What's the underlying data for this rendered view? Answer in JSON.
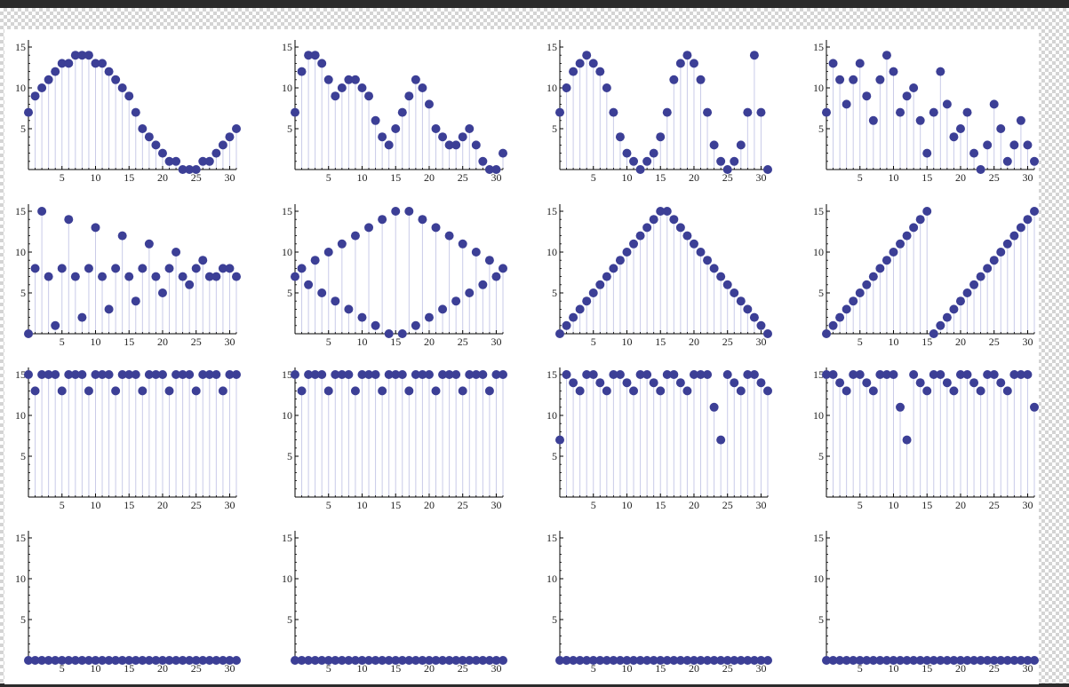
{
  "chart_data": [
    {
      "type": "stem",
      "row": 0,
      "col": 0,
      "xlim": [
        0,
        31
      ],
      "ylim": [
        0,
        15
      ],
      "xticks": [
        5,
        10,
        15,
        20,
        25,
        30
      ],
      "yticks": [
        5,
        10,
        15
      ],
      "values": [
        7,
        9,
        10,
        11,
        12,
        13,
        13,
        14,
        14,
        14,
        13,
        13,
        12,
        11,
        10,
        9,
        7,
        5,
        4,
        3,
        2,
        1,
        1,
        0,
        0,
        0,
        1,
        1,
        2,
        3,
        4,
        5
      ]
    },
    {
      "type": "stem",
      "row": 0,
      "col": 1,
      "xlim": [
        0,
        31
      ],
      "ylim": [
        0,
        15
      ],
      "xticks": [
        5,
        10,
        15,
        20,
        25,
        30
      ],
      "yticks": [
        5,
        10,
        15
      ],
      "values": [
        7,
        12,
        14,
        14,
        13,
        11,
        9,
        10,
        11,
        11,
        10,
        9,
        6,
        4,
        3,
        5,
        7,
        9,
        11,
        10,
        8,
        5,
        4,
        3,
        3,
        4,
        5,
        3,
        1,
        0,
        0,
        2
      ]
    },
    {
      "type": "stem",
      "row": 0,
      "col": 2,
      "xlim": [
        0,
        31
      ],
      "ylim": [
        0,
        15
      ],
      "xticks": [
        5,
        10,
        15,
        20,
        25,
        30
      ],
      "yticks": [
        5,
        10,
        15
      ],
      "values": [
        7,
        10,
        12,
        13,
        14,
        13,
        12,
        10,
        7,
        4,
        2,
        1,
        0,
        1,
        2,
        4,
        7,
        11,
        13,
        14,
        13,
        11,
        7,
        3,
        1,
        0,
        1,
        3,
        7,
        14,
        7,
        0
      ]
    },
    {
      "type": "stem",
      "row": 0,
      "col": 3,
      "xlim": [
        0,
        31
      ],
      "ylim": [
        0,
        15
      ],
      "xticks": [
        5,
        10,
        15,
        20,
        25,
        30
      ],
      "yticks": [
        5,
        10,
        15
      ],
      "values": [
        7,
        13,
        11,
        8,
        11,
        13,
        9,
        6,
        11,
        14,
        12,
        7,
        9,
        10,
        6,
        2,
        7,
        12,
        8,
        4,
        5,
        7,
        2,
        0,
        3,
        8,
        5,
        1,
        3,
        6,
        3,
        1
      ]
    },
    {
      "type": "stem",
      "row": 1,
      "col": 0,
      "xlim": [
        0,
        31
      ],
      "ylim": [
        0,
        15
      ],
      "xticks": [
        5,
        10,
        15,
        20,
        25,
        30
      ],
      "yticks": [
        5,
        10,
        15
      ],
      "values": [
        0,
        8,
        15,
        7,
        1,
        8,
        14,
        7,
        2,
        8,
        13,
        7,
        3,
        8,
        12,
        7,
        4,
        8,
        11,
        7,
        5,
        8,
        10,
        7,
        6,
        8,
        9,
        7,
        7,
        8,
        8,
        7
      ]
    },
    {
      "type": "stem",
      "row": 1,
      "col": 1,
      "xlim": [
        0,
        31
      ],
      "ylim": [
        0,
        15
      ],
      "xticks": [
        5,
        10,
        15,
        20,
        25,
        30
      ],
      "yticks": [
        5,
        10,
        15
      ],
      "values": [
        7,
        8,
        6,
        9,
        5,
        10,
        4,
        11,
        3,
        12,
        2,
        13,
        1,
        14,
        0,
        15,
        0,
        15,
        1,
        14,
        2,
        13,
        3,
        12,
        4,
        11,
        5,
        10,
        6,
        9,
        7,
        8
      ]
    },
    {
      "type": "stem",
      "row": 1,
      "col": 2,
      "xlim": [
        0,
        31
      ],
      "ylim": [
        0,
        15
      ],
      "xticks": [
        5,
        10,
        15,
        20,
        25,
        30
      ],
      "yticks": [
        5,
        10,
        15
      ],
      "values": [
        0,
        1,
        2,
        3,
        4,
        5,
        6,
        7,
        8,
        9,
        10,
        11,
        12,
        13,
        14,
        15,
        15,
        14,
        13,
        12,
        11,
        10,
        9,
        8,
        7,
        6,
        5,
        4,
        3,
        2,
        1,
        0
      ]
    },
    {
      "type": "stem",
      "row": 1,
      "col": 3,
      "xlim": [
        0,
        31
      ],
      "ylim": [
        0,
        15
      ],
      "xticks": [
        5,
        10,
        15,
        20,
        25,
        30
      ],
      "yticks": [
        5,
        10,
        15
      ],
      "values": [
        0,
        1,
        2,
        3,
        4,
        5,
        6,
        7,
        8,
        9,
        10,
        11,
        12,
        13,
        14,
        15,
        0,
        1,
        2,
        3,
        4,
        5,
        6,
        7,
        8,
        9,
        10,
        11,
        12,
        13,
        14,
        15
      ]
    },
    {
      "type": "stem",
      "row": 2,
      "col": 0,
      "xlim": [
        0,
        31
      ],
      "ylim": [
        0,
        15
      ],
      "xticks": [
        5,
        10,
        15,
        20,
        25,
        30
      ],
      "yticks": [
        5,
        10,
        15
      ],
      "values": [
        15,
        13,
        15,
        15,
        15,
        13,
        15,
        15,
        15,
        13,
        15,
        15,
        15,
        13,
        15,
        15,
        15,
        13,
        15,
        15,
        15,
        13,
        15,
        15,
        15,
        13,
        15,
        15,
        15,
        13,
        15,
        15
      ]
    },
    {
      "type": "stem",
      "row": 2,
      "col": 1,
      "xlim": [
        0,
        31
      ],
      "ylim": [
        0,
        15
      ],
      "xticks": [
        5,
        10,
        15,
        20,
        25,
        30
      ],
      "yticks": [
        5,
        10,
        15
      ],
      "values": [
        15,
        13,
        15,
        15,
        15,
        13,
        15,
        15,
        15,
        13,
        15,
        15,
        15,
        13,
        15,
        15,
        15,
        13,
        15,
        15,
        15,
        13,
        15,
        15,
        15,
        13,
        15,
        15,
        15,
        13,
        15,
        15
      ]
    },
    {
      "type": "stem",
      "row": 2,
      "col": 2,
      "xlim": [
        0,
        31
      ],
      "ylim": [
        0,
        15
      ],
      "xticks": [
        5,
        10,
        15,
        20,
        25,
        30
      ],
      "yticks": [
        5,
        10,
        15
      ],
      "values": [
        7,
        15,
        14,
        13,
        15,
        15,
        14,
        13,
        15,
        15,
        14,
        13,
        15,
        15,
        14,
        13,
        15,
        15,
        14,
        13,
        15,
        15,
        15,
        11,
        7,
        15,
        14,
        13,
        15,
        15,
        14,
        13
      ]
    },
    {
      "type": "stem",
      "row": 2,
      "col": 3,
      "xlim": [
        0,
        31
      ],
      "ylim": [
        0,
        15
      ],
      "xticks": [
        5,
        10,
        15,
        20,
        25,
        30
      ],
      "yticks": [
        5,
        10,
        15
      ],
      "values": [
        15,
        15,
        14,
        13,
        15,
        15,
        14,
        13,
        15,
        15,
        15,
        11,
        7,
        15,
        14,
        13,
        15,
        15,
        14,
        13,
        15,
        15,
        14,
        13,
        15,
        15,
        14,
        13,
        15,
        15,
        15,
        11
      ]
    },
    {
      "type": "stem",
      "row": 3,
      "col": 0,
      "xlim": [
        0,
        31
      ],
      "ylim": [
        0,
        15
      ],
      "xticks": [
        5,
        10,
        15,
        20,
        25,
        30
      ],
      "yticks": [
        5,
        10,
        15
      ],
      "values": [
        0,
        0,
        0,
        0,
        0,
        0,
        0,
        0,
        0,
        0,
        0,
        0,
        0,
        0,
        0,
        0,
        0,
        0,
        0,
        0,
        0,
        0,
        0,
        0,
        0,
        0,
        0,
        0,
        0,
        0,
        0,
        0
      ]
    },
    {
      "type": "stem",
      "row": 3,
      "col": 1,
      "xlim": [
        0,
        31
      ],
      "ylim": [
        0,
        15
      ],
      "xticks": [
        5,
        10,
        15,
        20,
        25,
        30
      ],
      "yticks": [
        5,
        10,
        15
      ],
      "values": [
        0,
        0,
        0,
        0,
        0,
        0,
        0,
        0,
        0,
        0,
        0,
        0,
        0,
        0,
        0,
        0,
        0,
        0,
        0,
        0,
        0,
        0,
        0,
        0,
        0,
        0,
        0,
        0,
        0,
        0,
        0,
        0
      ]
    },
    {
      "type": "stem",
      "row": 3,
      "col": 2,
      "xlim": [
        0,
        31
      ],
      "ylim": [
        0,
        15
      ],
      "xticks": [
        5,
        10,
        15,
        20,
        25,
        30
      ],
      "yticks": [
        5,
        10,
        15
      ],
      "values": [
        0,
        0,
        0,
        0,
        0,
        0,
        0,
        0,
        0,
        0,
        0,
        0,
        0,
        0,
        0,
        0,
        0,
        0,
        0,
        0,
        0,
        0,
        0,
        0,
        0,
        0,
        0,
        0,
        0,
        0,
        0,
        0
      ]
    },
    {
      "type": "stem",
      "row": 3,
      "col": 3,
      "xlim": [
        0,
        31
      ],
      "ylim": [
        0,
        15
      ],
      "xticks": [
        5,
        10,
        15,
        20,
        25,
        30
      ],
      "yticks": [
        5,
        10,
        15
      ],
      "values": [
        0,
        0,
        0,
        0,
        0,
        0,
        0,
        0,
        0,
        0,
        0,
        0,
        0,
        0,
        0,
        0,
        0,
        0,
        0,
        0,
        0,
        0,
        0,
        0,
        0,
        0,
        0,
        0,
        0,
        0,
        0,
        0
      ]
    }
  ],
  "colors": {
    "point": "#3c3f96",
    "stem": "#c9cbe8",
    "axis": "#000000"
  }
}
